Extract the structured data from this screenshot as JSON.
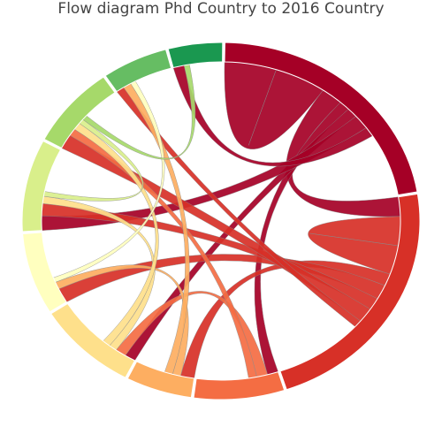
{
  "title": "Flow diagram Phd Country to 2016 Country",
  "chart_data": {
    "type": "chord",
    "title": "Flow diagram Phd Country to 2016 Country",
    "groups": [
      {
        "color": "#a50026",
        "share": 0.225
      },
      {
        "color": "#d73027",
        "share": 0.225
      },
      {
        "color": "#f46d43",
        "share": 0.075
      },
      {
        "color": "#fdae61",
        "share": 0.055
      },
      {
        "color": "#fee08b",
        "share": 0.085
      },
      {
        "color": "#ffffbf",
        "share": 0.075
      },
      {
        "color": "#d9ef8b",
        "share": 0.085
      },
      {
        "color": "#a6d96a",
        "share": 0.075
      },
      {
        "color": "#66bd63",
        "share": 0.055
      },
      {
        "color": "#1a9850",
        "share": 0.045
      }
    ],
    "flows": [
      {
        "from": 0,
        "to": 0,
        "share": 0.095,
        "color": "#a50026"
      },
      {
        "from": 0,
        "to": 1,
        "share": 0.04,
        "color": "#a50026"
      },
      {
        "from": 0,
        "to": 2,
        "share": 0.02,
        "color": "#a50026"
      },
      {
        "from": 0,
        "to": 4,
        "share": 0.02,
        "color": "#a50026"
      },
      {
        "from": 0,
        "to": 6,
        "share": 0.03,
        "color": "#a50026"
      },
      {
        "from": 0,
        "to": 9,
        "share": 0.02,
        "color": "#a50026"
      },
      {
        "from": 1,
        "to": 1,
        "share": 0.06,
        "color": "#d73027"
      },
      {
        "from": 1,
        "to": 3,
        "share": 0.025,
        "color": "#d73027"
      },
      {
        "from": 1,
        "to": 5,
        "share": 0.03,
        "color": "#d73027"
      },
      {
        "from": 1,
        "to": 6,
        "share": 0.025,
        "color": "#d73027"
      },
      {
        "from": 1,
        "to": 7,
        "share": 0.03,
        "color": "#d73027"
      },
      {
        "from": 1,
        "to": 8,
        "share": 0.015,
        "color": "#d73027"
      },
      {
        "from": 2,
        "to": 4,
        "share": 0.02,
        "color": "#f46d43"
      },
      {
        "from": 2,
        "to": 7,
        "share": 0.015,
        "color": "#f46d43"
      },
      {
        "from": 3,
        "to": 5,
        "share": 0.015,
        "color": "#fdae61"
      },
      {
        "from": 3,
        "to": 8,
        "share": 0.015,
        "color": "#fdae61"
      },
      {
        "from": 4,
        "to": 6,
        "share": 0.015,
        "color": "#fee08b"
      },
      {
        "from": 4,
        "to": 7,
        "share": 0.015,
        "color": "#fee08b"
      },
      {
        "from": 5,
        "to": 8,
        "share": 0.01,
        "color": "#ffffbf"
      },
      {
        "from": 6,
        "to": 7,
        "share": 0.01,
        "color": "#d9ef8b"
      },
      {
        "from": 7,
        "to": 9,
        "share": 0.01,
        "color": "#a6d96a"
      }
    ]
  }
}
